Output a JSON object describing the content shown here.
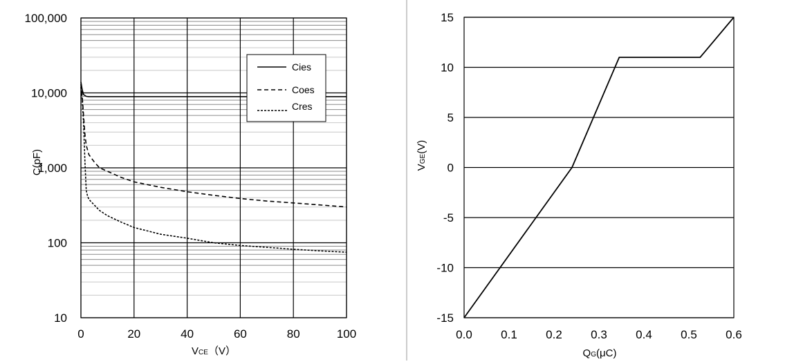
{
  "chart_data": [
    {
      "type": "line",
      "xlabel": "V",
      "xlabel_sub": "CE",
      "xlabel_suffix": "（V）",
      "ylabel": "C(pF)",
      "xlim": [
        0,
        100
      ],
      "ylim": [
        10,
        100000
      ],
      "yscale": "log",
      "grid": true,
      "legend": "top-right",
      "xticks": [
        {
          "value": 0,
          "label": "0"
        },
        {
          "value": 20,
          "label": "20"
        },
        {
          "value": 40,
          "label": "40"
        },
        {
          "value": 60,
          "label": "60"
        },
        {
          "value": 80,
          "label": "80"
        },
        {
          "value": 100,
          "label": "100"
        }
      ],
      "yticks": [
        {
          "value": 10,
          "label": "10"
        },
        {
          "value": 100,
          "label": "100"
        },
        {
          "value": 1000,
          "label": "1,000"
        },
        {
          "value": 10000,
          "label": "10,000"
        },
        {
          "value": 100000,
          "label": "100,000"
        }
      ],
      "series": [
        {
          "name": "Cies",
          "dash": "solid",
          "x": [
            0,
            0.5,
            1,
            2,
            3,
            5,
            10,
            20,
            40,
            60,
            80,
            100
          ],
          "y": [
            14000,
            11000,
            9500,
            9000,
            8900,
            8900,
            8900,
            8900,
            8900,
            8900,
            8900,
            8900
          ]
        },
        {
          "name": "Coes",
          "dash": "dashed",
          "x": [
            0,
            0.5,
            1,
            1.5,
            2,
            3,
            5,
            7,
            10,
            15,
            20,
            30,
            40,
            50,
            60,
            70,
            80,
            90,
            100
          ],
          "y": [
            13000,
            9000,
            5000,
            2800,
            2000,
            1500,
            1200,
            1000,
            900,
            750,
            650,
            550,
            480,
            430,
            390,
            360,
            340,
            320,
            300
          ]
        },
        {
          "name": "Cres",
          "dash": "dotted",
          "x": [
            0,
            0.5,
            1,
            1.5,
            2,
            2.5,
            3,
            5,
            7,
            10,
            15,
            20,
            30,
            40,
            50,
            60,
            70,
            80,
            90,
            100
          ],
          "y": [
            12000,
            8000,
            4000,
            1200,
            500,
            420,
            380,
            320,
            270,
            230,
            190,
            160,
            130,
            115,
            100,
            92,
            87,
            82,
            78,
            75
          ]
        }
      ]
    },
    {
      "type": "line",
      "xlabel": "Q",
      "xlabel_sub": "G",
      "xlabel_suffix": "(μC)",
      "ylabel": "V",
      "ylabel_sub": "GE",
      "ylabel_suffix": "(V)",
      "xlim": [
        0,
        0.6
      ],
      "ylim": [
        -15,
        15
      ],
      "grid": true,
      "xticks": [
        {
          "value": 0,
          "label": "0.0"
        },
        {
          "value": 0.1,
          "label": "0.1"
        },
        {
          "value": 0.2,
          "label": "0.2"
        },
        {
          "value": 0.3,
          "label": "0.3"
        },
        {
          "value": 0.4,
          "label": "0.4"
        },
        {
          "value": 0.5,
          "label": "0.5"
        },
        {
          "value": 0.6,
          "label": "0.6"
        }
      ],
      "yticks": [
        {
          "value": -15,
          "label": "-15"
        },
        {
          "value": -10,
          "label": "-10"
        },
        {
          "value": -5,
          "label": "-5"
        },
        {
          "value": 0,
          "label": "0"
        },
        {
          "value": 5,
          "label": "5"
        },
        {
          "value": 10,
          "label": "10"
        },
        {
          "value": 15,
          "label": "15"
        }
      ],
      "series": [
        {
          "dash": "solid",
          "x": [
            0,
            0.24,
            0.345,
            0.525,
            0.6
          ],
          "y": [
            -15,
            0,
            11,
            11,
            15
          ]
        }
      ]
    }
  ]
}
